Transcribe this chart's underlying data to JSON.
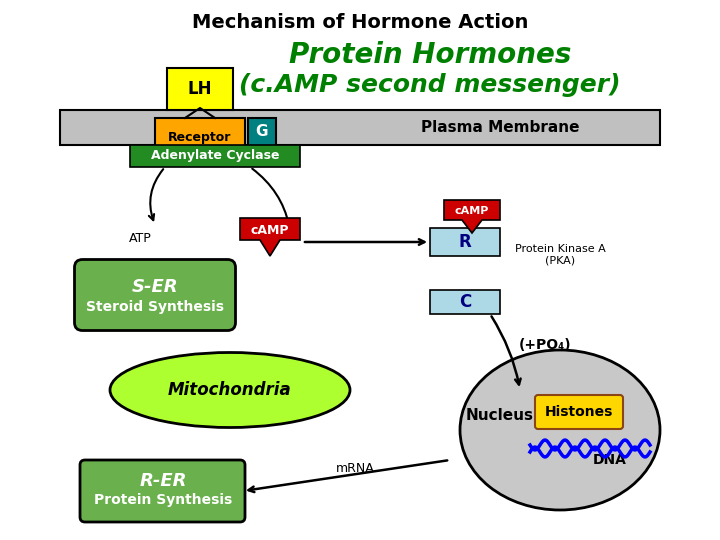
{
  "title1": "Mechanism of Hormone Action",
  "title2": "Protein Hormones",
  "title3": "(c.AMP second messenger)",
  "bg_color": "#ffffff",
  "title1_color": "#000000",
  "title2_color": "#008000",
  "title3_color": "#008000",
  "plasma_membrane_color": "#c0c0c0",
  "receptor_color": "#ffa500",
  "lh_color": "#ffff00",
  "g_color": "#008080",
  "adenylate_color": "#228B22",
  "camp_red_color": "#cc0000",
  "r_box_color": "#add8e6",
  "c_box_color": "#add8e6",
  "pka_label": "Protein Kinase A\n(PKA)",
  "nucleus_color": "#b0b0b0",
  "histones_color": "#ffd700",
  "mito_color": "#adff2f",
  "ser_color": "#6ab04c",
  "rer_color": "#6ab04c"
}
